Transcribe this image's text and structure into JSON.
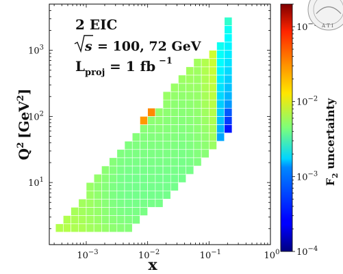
{
  "chart_data": {
    "type": "heatmap",
    "title": "",
    "annotations": {
      "line1": "2 EIC",
      "line2_sqrt": "√s",
      "line2_value": "= 100, 72 GeV",
      "line3_L": "L",
      "line3_sub": "proj",
      "line3_value": "= 1 fb",
      "line3_sup": "−1"
    },
    "xlabel": "x",
    "ylabel": "Q",
    "ylabel_sup": "2",
    "ylabel_unit": "[GeV",
    "ylabel_unit_sup": "2",
    "ylabel_unit_close": "]",
    "xlim": [
      0.00025,
      1.0
    ],
    "ylim": [
      1.15,
      5000
    ],
    "x_scale": "log",
    "y_scale": "log",
    "x_tick_labels": [
      {
        "base": "10",
        "exp": "−3"
      },
      {
        "base": "10",
        "exp": "−2"
      },
      {
        "base": "10",
        "exp": "−1"
      },
      {
        "base": "10",
        "exp": "0"
      }
    ],
    "x_tick_values": [
      0.001,
      0.01,
      0.1,
      1
    ],
    "y_tick_labels": [
      {
        "base": "10",
        "exp": "1"
      },
      {
        "base": "10",
        "exp": "2"
      },
      {
        "base": "10",
        "exp": "3"
      }
    ],
    "y_tick_values": [
      10,
      100,
      1000
    ],
    "colorbar": {
      "label": "F",
      "label_sub": "2",
      "label_rest": " uncertainty",
      "range": [
        0.0001,
        0.2
      ],
      "scale": "log",
      "colormap": "jet",
      "tick_labels": [
        {
          "base": "10",
          "exp": "−1"
        },
        {
          "base": "10",
          "exp": "−2"
        },
        {
          "base": "10",
          "exp": "−3"
        },
        {
          "base": "10",
          "exp": "−4"
        }
      ],
      "tick_values": [
        0.1,
        0.01,
        0.001,
        0.0001
      ]
    },
    "logx_bin_edges_start": -3.5,
    "logx_bin_width": 0.125,
    "logq2_bin_edges_start": 0.25,
    "logq2_bin_width": 0.125,
    "bins_by_x_column": [
      {
        "col": 0,
        "q2_rows": [
          0
        ],
        "values": [
          0.0065
        ]
      },
      {
        "col": 1,
        "q2_rows": [
          0,
          1
        ],
        "values": [
          0.0066,
          0.0064
        ]
      },
      {
        "col": 2,
        "q2_rows": [
          0,
          1,
          2
        ],
        "values": [
          0.0063,
          0.0062,
          0.006
        ]
      },
      {
        "col": 3,
        "q2_rows": [
          0,
          1,
          2,
          3
        ],
        "values": [
          0.0062,
          0.006,
          0.0058,
          0.0058
        ]
      },
      {
        "col": 4,
        "q2_rows": [
          0,
          1,
          2,
          3,
          4,
          5
        ],
        "values": [
          0.0058,
          0.0057,
          0.0055,
          0.0056,
          0.0055,
          0.0054
        ]
      },
      {
        "col": 5,
        "q2_rows": [
          0,
          1,
          2,
          3,
          4,
          5,
          6
        ],
        "values": [
          0.0056,
          0.0054,
          0.0053,
          0.0052,
          0.0051,
          0.005,
          0.0052
        ]
      },
      {
        "col": 6,
        "q2_rows": [
          0,
          1,
          2,
          3,
          4,
          5,
          6,
          7
        ],
        "values": [
          0.0053,
          0.005,
          0.0049,
          0.0048,
          0.0047,
          0.0047,
          0.0048,
          0.0049
        ]
      },
      {
        "col": 7,
        "q2_rows": [
          0,
          1,
          2,
          3,
          4,
          5,
          6,
          7,
          8
        ],
        "values": [
          0.005,
          0.0048,
          0.0046,
          0.0045,
          0.0044,
          0.0044,
          0.0045,
          0.0046,
          0.0047
        ]
      },
      {
        "col": 8,
        "q2_rows": [
          0,
          1,
          2,
          3,
          4,
          5,
          6,
          7,
          8,
          9
        ],
        "values": [
          0.0048,
          0.0046,
          0.0044,
          0.0043,
          0.0042,
          0.0042,
          0.0042,
          0.0043,
          0.0044,
          0.0045
        ]
      },
      {
        "col": 9,
        "q2_rows": [
          0,
          1,
          2,
          3,
          4,
          5,
          6,
          7,
          8,
          9,
          10
        ],
        "values": [
          0.0047,
          0.0045,
          0.0043,
          0.0042,
          0.0041,
          0.0041,
          0.0041,
          0.0042,
          0.0043,
          0.0044,
          0.0045
        ]
      },
      {
        "col": 10,
        "q2_rows": [
          1,
          2,
          3,
          4,
          5,
          6,
          7,
          8,
          9,
          10,
          11
        ],
        "values": [
          0.0044,
          0.0043,
          0.0042,
          0.0041,
          0.0041,
          0.0041,
          0.0042,
          0.0043,
          0.0044,
          0.0045,
          0.0047
        ]
      },
      {
        "col": 11,
        "q2_rows": [
          2,
          3,
          4,
          5,
          6,
          7,
          8,
          9,
          10,
          11,
          12,
          13
        ],
        "values": [
          0.0043,
          0.0042,
          0.0041,
          0.0041,
          0.0041,
          0.0042,
          0.0043,
          0.0044,
          0.0045,
          0.0046,
          0.0048,
          0.025
        ]
      },
      {
        "col": 12,
        "q2_rows": [
          3,
          4,
          5,
          6,
          7,
          8,
          9,
          10,
          11,
          12,
          13,
          14
        ],
        "values": [
          0.0042,
          0.0041,
          0.0041,
          0.0042,
          0.0042,
          0.0043,
          0.0044,
          0.0045,
          0.0046,
          0.0047,
          0.0049,
          0.028
        ]
      },
      {
        "col": 13,
        "q2_rows": [
          3,
          4,
          5,
          6,
          7,
          8,
          9,
          10,
          11,
          12,
          13,
          14
        ],
        "values": [
          0.0042,
          0.0041,
          0.0041,
          0.0041,
          0.0042,
          0.0043,
          0.0044,
          0.0045,
          0.0046,
          0.0048,
          0.005,
          0.0052
        ]
      },
      {
        "col": 14,
        "q2_rows": [
          4,
          5,
          6,
          7,
          8,
          9,
          10,
          11,
          12,
          13,
          14,
          15,
          16
        ],
        "values": [
          0.0041,
          0.0041,
          0.0041,
          0.0042,
          0.0043,
          0.0044,
          0.0045,
          0.0046,
          0.0047,
          0.0048,
          0.005,
          0.0052,
          0.0054
        ]
      },
      {
        "col": 15,
        "q2_rows": [
          5,
          6,
          7,
          8,
          9,
          10,
          11,
          12,
          13,
          14,
          15,
          16,
          17
        ],
        "values": [
          0.0041,
          0.0041,
          0.0042,
          0.0043,
          0.0044,
          0.0045,
          0.0046,
          0.0047,
          0.0048,
          0.0049,
          0.005,
          0.0052,
          0.0054
        ]
      },
      {
        "col": 16,
        "q2_rows": [
          6,
          7,
          8,
          9,
          10,
          11,
          12,
          13,
          14,
          15,
          16,
          17,
          18
        ],
        "values": [
          0.0041,
          0.0042,
          0.0042,
          0.0043,
          0.0044,
          0.0045,
          0.0046,
          0.0047,
          0.0048,
          0.0049,
          0.0051,
          0.0053,
          0.0055
        ]
      },
      {
        "col": 17,
        "q2_rows": [
          7,
          8,
          9,
          10,
          11,
          12,
          13,
          14,
          15,
          16,
          17,
          18,
          19
        ],
        "values": [
          0.0042,
          0.0043,
          0.0044,
          0.0045,
          0.0046,
          0.0047,
          0.0048,
          0.0049,
          0.005,
          0.0052,
          0.0054,
          0.0056,
          0.0058
        ]
      },
      {
        "col": 18,
        "q2_rows": [
          8,
          9,
          10,
          11,
          12,
          13,
          14,
          15,
          16,
          17,
          18,
          19,
          20
        ],
        "values": [
          0.0045,
          0.0046,
          0.0047,
          0.0048,
          0.0049,
          0.005,
          0.0051,
          0.0052,
          0.0053,
          0.0054,
          0.0055,
          0.0056,
          0.0058
        ]
      },
      {
        "col": 19,
        "q2_rows": [
          9,
          10,
          11,
          12,
          13,
          14,
          15,
          16,
          17,
          18,
          19,
          20
        ],
        "values": [
          0.0048,
          0.005,
          0.0051,
          0.0053,
          0.0055,
          0.0057,
          0.0059,
          0.006,
          0.0062,
          0.0063,
          0.0064,
          0.0065
        ]
      },
      {
        "col": 20,
        "q2_rows": [
          10,
          11,
          12,
          13,
          14,
          15,
          16,
          17,
          18,
          19,
          20,
          21
        ],
        "values": [
          0.0055,
          0.0058,
          0.006,
          0.0063,
          0.0066,
          0.0068,
          0.007,
          0.0072,
          0.0074,
          0.0076,
          0.0078,
          0.008
        ]
      },
      {
        "col": 21,
        "q2_rows": [
          11,
          12,
          13,
          14,
          15,
          16,
          17,
          18,
          19,
          20,
          21,
          22
        ],
        "values": [
          0.0009,
          0.001,
          0.0011,
          0.0012,
          0.0012,
          0.0013,
          0.0014,
          0.0015,
          0.0016,
          0.0017,
          0.0018,
          0.0019
        ]
      },
      {
        "col": 22,
        "q2_rows": [
          12,
          13,
          14,
          15,
          16,
          17,
          18,
          19,
          20,
          21,
          22,
          23,
          24,
          25
        ],
        "values": [
          0.0003,
          0.0004,
          0.0005,
          0.0008,
          0.001,
          0.0011,
          0.0012,
          0.0013,
          0.0014,
          0.0015,
          0.0016,
          0.0017,
          0.0019,
          0.0025
        ]
      }
    ]
  }
}
